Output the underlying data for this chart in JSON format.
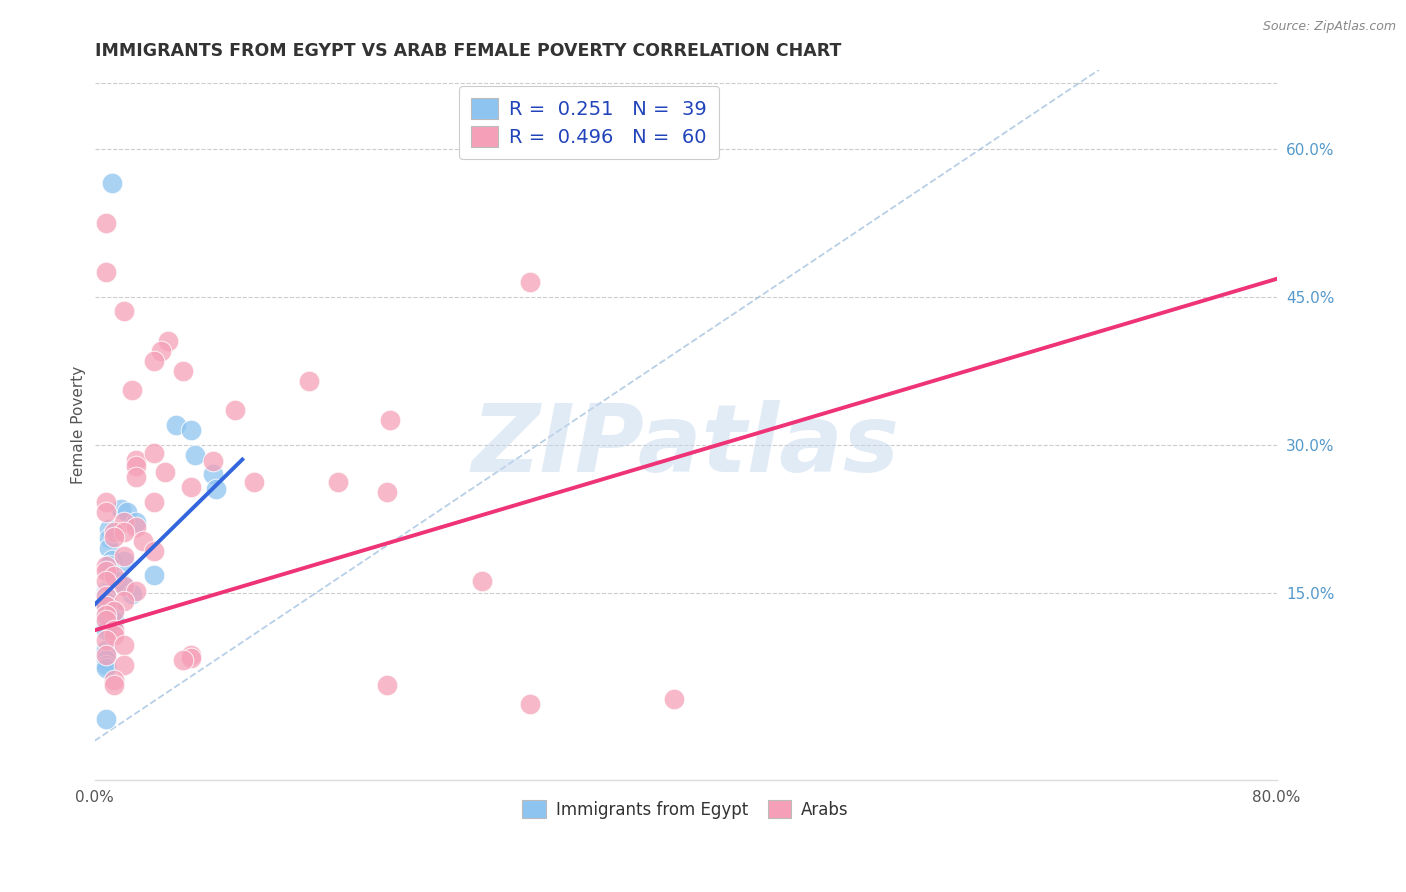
{
  "title": "IMMIGRANTS FROM EGYPT VS ARAB FEMALE POVERTY CORRELATION CHART",
  "source": "Source: ZipAtlas.com",
  "ylabel": "Female Poverty",
  "right_yticks": [
    "60.0%",
    "45.0%",
    "30.0%",
    "15.0%"
  ],
  "right_ytick_vals": [
    0.6,
    0.45,
    0.3,
    0.15
  ],
  "xmin": 0.0,
  "xmax": 0.8,
  "ymin": -0.04,
  "ymax": 0.68,
  "blue_color": "#8ec4f0",
  "pink_color": "#f5a0b8",
  "blue_line_color": "#3366dd",
  "pink_line_color": "#ee3377",
  "diag_line_color": "#99bbdd",
  "watermark": "ZIPatlas",
  "blue_scatter": [
    [
      0.012,
      0.565
    ],
    [
      0.055,
      0.32
    ],
    [
      0.065,
      0.315
    ],
    [
      0.068,
      0.29
    ],
    [
      0.08,
      0.27
    ],
    [
      0.082,
      0.255
    ],
    [
      0.018,
      0.235
    ],
    [
      0.022,
      0.232
    ],
    [
      0.028,
      0.222
    ],
    [
      0.01,
      0.215
    ],
    [
      0.01,
      0.205
    ],
    [
      0.01,
      0.195
    ],
    [
      0.012,
      0.183
    ],
    [
      0.02,
      0.182
    ],
    [
      0.01,
      0.178
    ],
    [
      0.01,
      0.172
    ],
    [
      0.04,
      0.168
    ],
    [
      0.015,
      0.162
    ],
    [
      0.02,
      0.158
    ],
    [
      0.008,
      0.152
    ],
    [
      0.008,
      0.15
    ],
    [
      0.025,
      0.149
    ],
    [
      0.008,
      0.148
    ],
    [
      0.008,
      0.146
    ],
    [
      0.008,
      0.142
    ],
    [
      0.008,
      0.141
    ],
    [
      0.008,
      0.138
    ],
    [
      0.012,
      0.132
    ],
    [
      0.013,
      0.131
    ],
    [
      0.008,
      0.127
    ],
    [
      0.008,
      0.122
    ],
    [
      0.013,
      0.121
    ],
    [
      0.008,
      0.117
    ],
    [
      0.008,
      0.112
    ],
    [
      0.008,
      0.092
    ],
    [
      0.008,
      0.082
    ],
    [
      0.008,
      0.077
    ],
    [
      0.008,
      0.074
    ],
    [
      0.008,
      0.022
    ]
  ],
  "pink_scatter": [
    [
      0.008,
      0.525
    ],
    [
      0.02,
      0.435
    ],
    [
      0.05,
      0.405
    ],
    [
      0.045,
      0.395
    ],
    [
      0.008,
      0.475
    ],
    [
      0.04,
      0.385
    ],
    [
      0.06,
      0.375
    ],
    [
      0.145,
      0.365
    ],
    [
      0.025,
      0.355
    ],
    [
      0.295,
      0.465
    ],
    [
      0.095,
      0.335
    ],
    [
      0.2,
      0.325
    ],
    [
      0.028,
      0.285
    ],
    [
      0.08,
      0.283
    ],
    [
      0.028,
      0.278
    ],
    [
      0.048,
      0.272
    ],
    [
      0.028,
      0.267
    ],
    [
      0.108,
      0.262
    ],
    [
      0.065,
      0.257
    ],
    [
      0.04,
      0.242
    ],
    [
      0.04,
      0.292
    ],
    [
      0.165,
      0.262
    ],
    [
      0.198,
      0.252
    ],
    [
      0.008,
      0.242
    ],
    [
      0.008,
      0.232
    ],
    [
      0.02,
      0.222
    ],
    [
      0.028,
      0.217
    ],
    [
      0.013,
      0.212
    ],
    [
      0.02,
      0.212
    ],
    [
      0.013,
      0.207
    ],
    [
      0.033,
      0.202
    ],
    [
      0.04,
      0.192
    ],
    [
      0.02,
      0.187
    ],
    [
      0.008,
      0.177
    ],
    [
      0.008,
      0.172
    ],
    [
      0.013,
      0.167
    ],
    [
      0.008,
      0.162
    ],
    [
      0.02,
      0.157
    ],
    [
      0.028,
      0.152
    ],
    [
      0.008,
      0.147
    ],
    [
      0.02,
      0.142
    ],
    [
      0.008,
      0.137
    ],
    [
      0.013,
      0.132
    ],
    [
      0.008,
      0.127
    ],
    [
      0.008,
      0.122
    ],
    [
      0.013,
      0.112
    ],
    [
      0.013,
      0.107
    ],
    [
      0.008,
      0.102
    ],
    [
      0.02,
      0.097
    ],
    [
      0.008,
      0.087
    ],
    [
      0.065,
      0.087
    ],
    [
      0.065,
      0.084
    ],
    [
      0.06,
      0.082
    ],
    [
      0.02,
      0.077
    ],
    [
      0.013,
      0.062
    ],
    [
      0.013,
      0.057
    ],
    [
      0.198,
      0.057
    ],
    [
      0.262,
      0.162
    ],
    [
      0.295,
      0.037
    ],
    [
      0.392,
      0.042
    ]
  ],
  "blue_line_x": [
    0.0,
    0.1
  ],
  "blue_line_y": [
    0.138,
    0.285
  ],
  "pink_line_x": [
    0.0,
    0.8
  ],
  "pink_line_y": [
    0.112,
    0.468
  ],
  "diag_line_x": [
    0.0,
    0.68
  ],
  "diag_line_y": [
    0.0,
    0.68
  ]
}
